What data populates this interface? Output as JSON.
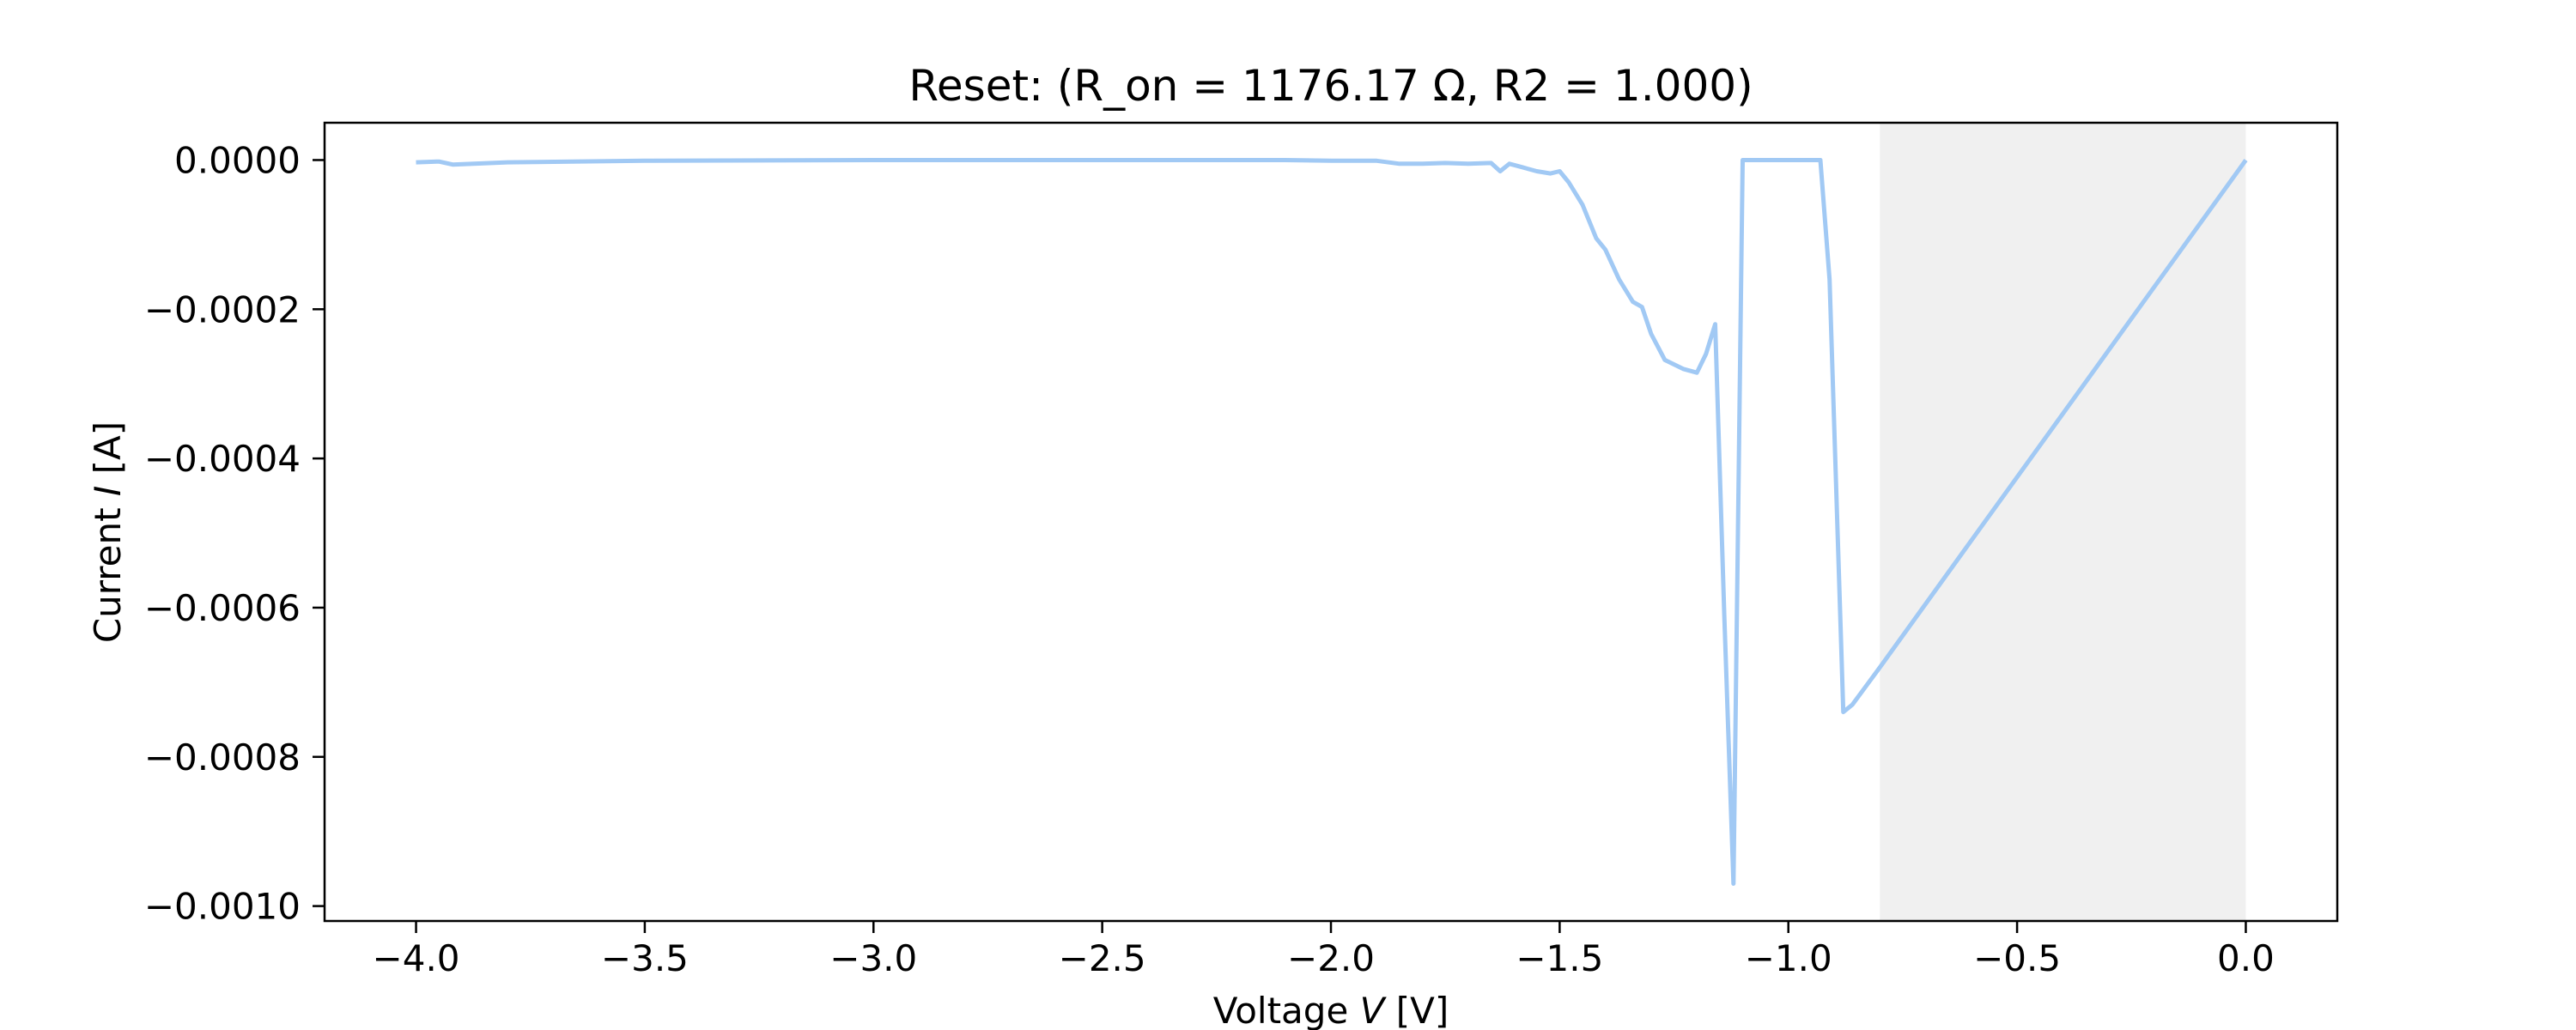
{
  "chart_data": {
    "type": "line",
    "title": "Reset: (R_on = 1176.17 Ω, R2 = 1.000)",
    "xlabel": {
      "prefix": "Voltage ",
      "variable": "V",
      "unit": " [V]"
    },
    "ylabel": {
      "prefix": "Current ",
      "variable": "I",
      "unit": " [A]"
    },
    "xlim": [
      -4.2,
      0.2
    ],
    "ylim": [
      -0.00102,
      5e-05
    ],
    "xticks": [
      -4.0,
      -3.5,
      -3.0,
      -2.5,
      -2.0,
      -1.5,
      -1.0,
      -0.5,
      0.0
    ],
    "xtick_labels": [
      "−4.0",
      "−3.5",
      "−3.0",
      "−2.5",
      "−2.0",
      "−1.5",
      "−1.0",
      "−0.5",
      "0.0"
    ],
    "yticks": [
      0.0,
      -0.0002,
      -0.0004,
      -0.0006,
      -0.0008,
      -0.001
    ],
    "ytick_labels": [
      "0.0000",
      "−0.0002",
      "−0.0004",
      "−0.0006",
      "−0.0008",
      "−0.0010"
    ],
    "grid": false,
    "shaded_region": {
      "x": [
        -0.8,
        0.0
      ],
      "color": "#f0f0f0"
    },
    "series": [
      {
        "color": "#a1c9f4",
        "x": [
          -4.0,
          -3.95,
          -3.92,
          -3.8,
          -3.5,
          -3.0,
          -2.5,
          -2.1,
          -2.0,
          -1.95,
          -1.9,
          -1.85,
          -1.8,
          -1.75,
          -1.7,
          -1.65,
          -1.63,
          -1.61,
          -1.58,
          -1.55,
          -1.52,
          -1.5,
          -1.48,
          -1.45,
          -1.42,
          -1.4,
          -1.37,
          -1.34,
          -1.32,
          -1.3,
          -1.27,
          -1.23,
          -1.2,
          -1.18,
          -1.16,
          -1.14,
          -1.12,
          -1.1,
          -1.05,
          -1.0,
          -0.95,
          -0.93,
          -0.91,
          -0.88,
          -0.86,
          -0.83,
          -0.8,
          -0.6,
          -0.4,
          -0.2,
          0.0
        ],
        "y": [
          -3e-06,
          -2e-06,
          -6e-06,
          -3e-06,
          -1e-06,
          0.0,
          0.0,
          0.0,
          -1e-06,
          -1e-06,
          -1e-06,
          -5e-06,
          -5e-06,
          -4e-06,
          -5e-06,
          -4e-06,
          -1.5e-05,
          -5e-06,
          -1e-05,
          -1.5e-05,
          -1.8e-05,
          -1.5e-05,
          -3e-05,
          -6e-05,
          -0.000105,
          -0.00012,
          -0.00016,
          -0.00019,
          -0.000197,
          -0.000233,
          -0.000268,
          -0.00028,
          -0.000285,
          -0.00026,
          -0.00022,
          -0.00061,
          -0.00097,
          0.0,
          0.0,
          0.0,
          0.0,
          0.0,
          -0.00016,
          -0.00074,
          -0.00073,
          -0.000705,
          -0.00068,
          -0.00051,
          -0.00034,
          -0.00017,
          0.0
        ]
      }
    ]
  }
}
